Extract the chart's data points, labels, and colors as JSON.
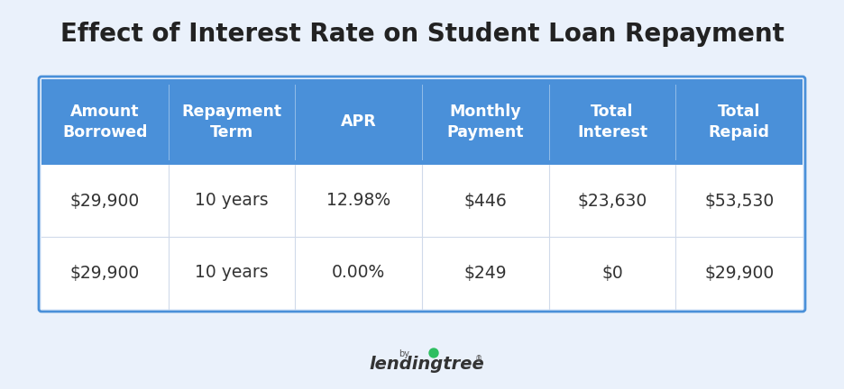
{
  "title": "Effect of Interest Rate on Student Loan Repayment",
  "background_color": "#eaf1fb",
  "header_bg_color": "#4a90d9",
  "header_text_color": "#ffffff",
  "row1_bg_color": "#ffffff",
  "row2_bg_color": "#ffffff",
  "cell_text_color": "#333333",
  "border_color": "#d0daea",
  "table_border_color": "#4a90d9",
  "columns": [
    "Amount\nBorrowed",
    "Repayment\nTerm",
    "APR",
    "Monthly\nPayment",
    "Total\nInterest",
    "Total\nRepaid"
  ],
  "rows": [
    [
      "$29,900",
      "10 years",
      "12.98%",
      "$446",
      "$23,630",
      "$53,530"
    ],
    [
      "$29,900",
      "10 years",
      "0.00%",
      "$249",
      "$0",
      "$29,900"
    ]
  ],
  "title_fontsize": 20,
  "header_fontsize": 12.5,
  "cell_fontsize": 13.5,
  "logo_by_fontsize": 7,
  "logo_fontsize": 14,
  "title_color": "#222222",
  "cell_text_dark": "#333333"
}
